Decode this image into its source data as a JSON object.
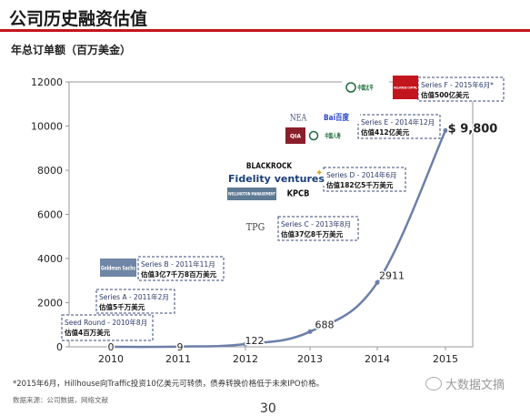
{
  "page": {
    "title": "公司历史融资估值",
    "footnote": "*2015年6月，Hillhouse向Traffic投资10亿美元可转债，债券转换价格低于未来IPO价格。",
    "source": "数据来源：公司数据，网络文献",
    "page_number": "30",
    "watermark": "大数据文摘"
  },
  "chart_data": {
    "type": "line",
    "title": "",
    "subtitle": "年总订单额（百万美金）",
    "xlabel": "",
    "ylabel": "",
    "x": [
      "2010",
      "2011",
      "2012",
      "2013",
      "2014",
      "2015"
    ],
    "series": [
      {
        "values": [
          0,
          9,
          122,
          688,
          2911,
          9800
        ]
      }
    ],
    "data_labels": [
      "0",
      "9",
      "122",
      "688",
      "2911",
      "$ 9,800"
    ],
    "ylim": [
      0,
      12000
    ],
    "yticks": [
      "0",
      "2000",
      "4000",
      "6000",
      "8000",
      "10000",
      "12000"
    ],
    "line_color": "#6b7fa8",
    "annotations": [
      {
        "line1": "Seed Round - 2010年8月",
        "line2": "估值4百万美元"
      },
      {
        "line1": "Series A - 2011年2月",
        "line2": "估值5千万美元"
      },
      {
        "line1": "Series B - 2011年11月",
        "line2": "估值3亿7千万8百万美元"
      },
      {
        "line1": "Series C - 2013年8月",
        "line2": "估值37亿8千万美元"
      },
      {
        "line1": "Series D - 2014年6月",
        "line2": "估值182亿5千万美元"
      },
      {
        "line1": "Series E - 2014年12月",
        "line2": "估值412亿美元"
      },
      {
        "line1": "Series F - 2015年6月*",
        "line2": "估值500亿美元"
      }
    ],
    "investor_logos": [
      {
        "text": "Goldman Sachs"
      },
      {
        "text": "TPG"
      },
      {
        "text": "BLACKROCK"
      },
      {
        "text": "Fidelity ventures"
      },
      {
        "text": "WELLINGTON MANAGEMENT"
      },
      {
        "text": "KPCB"
      },
      {
        "text": "NEA"
      },
      {
        "text": "Bai百度"
      },
      {
        "text": "QIA"
      },
      {
        "text": "中国人寿"
      },
      {
        "text": "中国太平"
      },
      {
        "text": "HILLHOUSE CAPITAL"
      }
    ]
  }
}
